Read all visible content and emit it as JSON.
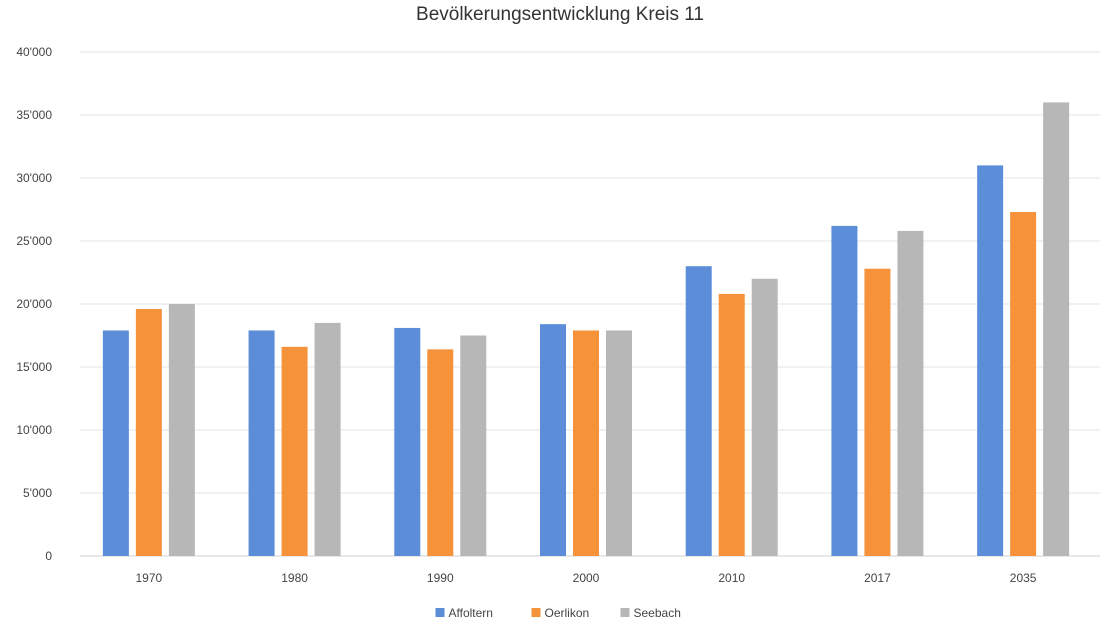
{
  "chart_data": {
    "type": "bar",
    "title": "Bevölkerungsentwicklung Kreis 11",
    "categories": [
      "1970",
      "1980",
      "1990",
      "2000",
      "2010",
      "2017",
      "2035"
    ],
    "series": [
      {
        "name": "Affoltern",
        "color": "#5b8dd9",
        "values": [
          17900,
          17900,
          18100,
          18400,
          23000,
          26200,
          31000
        ]
      },
      {
        "name": "Oerlikon",
        "color": "#f5923a",
        "values": [
          19600,
          16600,
          16400,
          17900,
          20800,
          22800,
          27300
        ]
      },
      {
        "name": "Seebach",
        "color": "#b7b7b7",
        "values": [
          20000,
          18500,
          17500,
          17900,
          22000,
          25800,
          36000
        ]
      }
    ],
    "ylim": [
      0,
      40000
    ],
    "yticks": [
      "0",
      "5'000",
      "10'000",
      "15'000",
      "20'000",
      "25'000",
      "30'000",
      "35'000",
      "40'000"
    ],
    "ytick_values": [
      0,
      5000,
      10000,
      15000,
      20000,
      25000,
      30000,
      35000,
      40000
    ],
    "grid": true,
    "legend_position": "bottom-center"
  }
}
